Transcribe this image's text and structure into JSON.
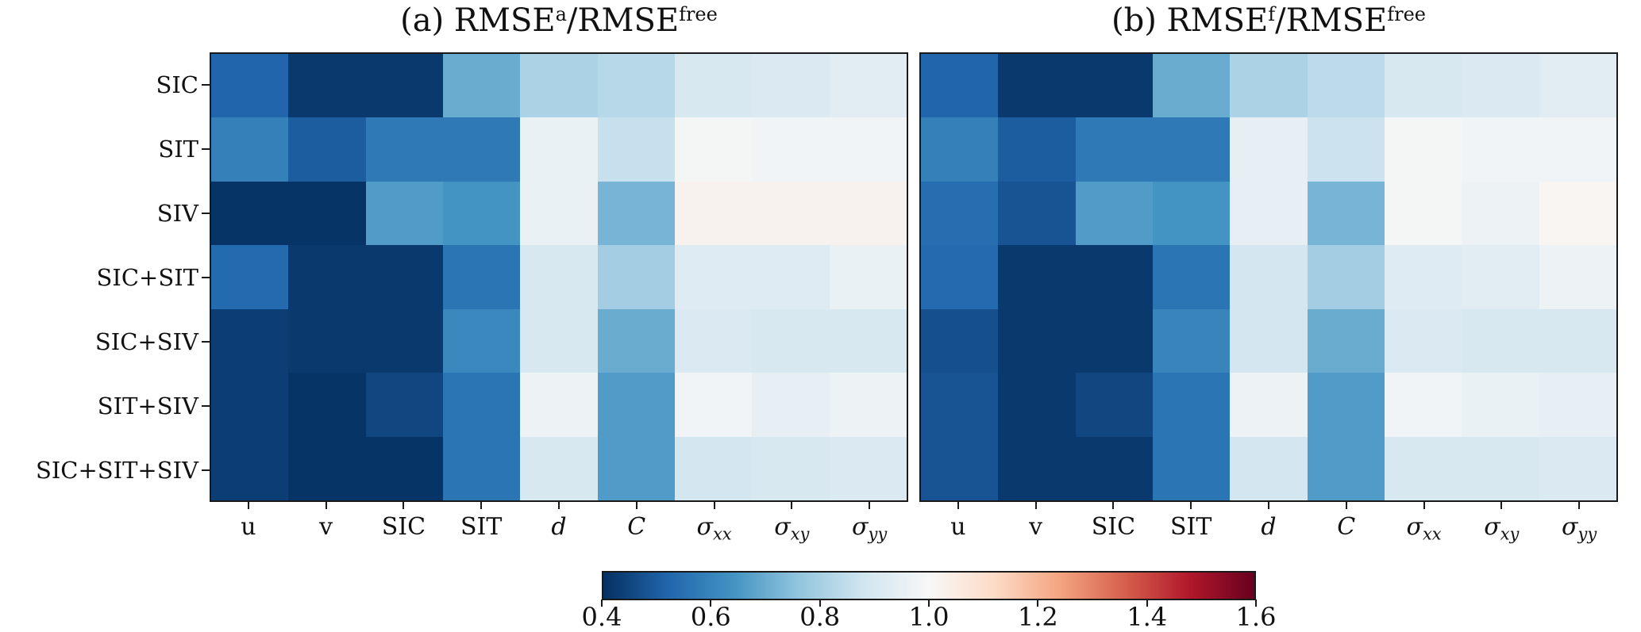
{
  "figure": {
    "background": "#ffffff",
    "spine_color": "#1a1a1a"
  },
  "chart_data": {
    "type": "heatmap",
    "colormap": "RdBu_r",
    "vmin": 0.4,
    "vmax": 1.6,
    "colormap_stops": [
      "#053061",
      "#2166ac",
      "#4393c3",
      "#92c5de",
      "#d1e5f0",
      "#f7f7f7",
      "#fddbc7",
      "#f4a582",
      "#d6604d",
      "#b2182b",
      "#67001f"
    ],
    "rows": [
      "SIC",
      "SIT",
      "SIV",
      "SIC+SIT",
      "SIC+SIV",
      "SIT+SIV",
      "SIC+SIT+SIV"
    ],
    "columns": [
      {
        "text": "u",
        "italic": false,
        "sub": ""
      },
      {
        "text": "v",
        "italic": false,
        "sub": ""
      },
      {
        "text": "SIC",
        "italic": false,
        "sub": ""
      },
      {
        "text": "SIT",
        "italic": false,
        "sub": ""
      },
      {
        "text": "d",
        "italic": true,
        "sub": ""
      },
      {
        "text": "C",
        "italic": true,
        "sub": ""
      },
      {
        "text": "σ",
        "italic": true,
        "sub": "xx"
      },
      {
        "text": "σ",
        "italic": true,
        "sub": "xy"
      },
      {
        "text": "σ",
        "italic": true,
        "sub": "yy"
      }
    ],
    "colorbar": {
      "orientation": "horizontal",
      "tick_values": [
        0.4,
        0.6,
        0.8,
        1.0,
        1.2,
        1.4,
        1.6
      ],
      "tick_labels": [
        "0.4",
        "0.6",
        "0.8",
        "1.0",
        "1.2",
        "1.4",
        "1.6"
      ]
    },
    "panels": [
      {
        "id": "a",
        "title": {
          "pre": "(a) RMSE",
          "sup1": "a",
          "mid": "/RMSE",
          "sup2": "free"
        },
        "values": [
          [
            0.52,
            0.42,
            0.42,
            0.7,
            0.81,
            0.83,
            0.9,
            0.91,
            0.93
          ],
          [
            0.59,
            0.5,
            0.57,
            0.57,
            0.96,
            0.86,
            0.99,
            0.98,
            0.98
          ],
          [
            0.41,
            0.41,
            0.66,
            0.64,
            0.96,
            0.72,
            1.02,
            1.02,
            1.02
          ],
          [
            0.53,
            0.42,
            0.42,
            0.56,
            0.9,
            0.79,
            0.92,
            0.92,
            0.96
          ],
          [
            0.43,
            0.42,
            0.42,
            0.61,
            0.9,
            0.7,
            0.91,
            0.9,
            0.9
          ],
          [
            0.43,
            0.41,
            0.45,
            0.56,
            0.97,
            0.66,
            0.98,
            0.95,
            0.97
          ],
          [
            0.43,
            0.41,
            0.41,
            0.56,
            0.9,
            0.66,
            0.89,
            0.9,
            0.91
          ]
        ]
      },
      {
        "id": "b",
        "title": {
          "pre": "(b) RMSE",
          "sup1": "f",
          "mid": "/RMSE",
          "sup2": "free"
        },
        "values": [
          [
            0.52,
            0.42,
            0.42,
            0.7,
            0.81,
            0.84,
            0.9,
            0.91,
            0.93
          ],
          [
            0.59,
            0.5,
            0.57,
            0.57,
            0.95,
            0.87,
            0.99,
            0.98,
            0.98
          ],
          [
            0.54,
            0.48,
            0.66,
            0.64,
            0.95,
            0.72,
            0.99,
            0.97,
            1.01
          ],
          [
            0.53,
            0.42,
            0.42,
            0.56,
            0.89,
            0.79,
            0.92,
            0.93,
            0.97
          ],
          [
            0.47,
            0.42,
            0.42,
            0.6,
            0.89,
            0.7,
            0.91,
            0.9,
            0.9
          ],
          [
            0.48,
            0.42,
            0.45,
            0.56,
            0.97,
            0.66,
            0.98,
            0.96,
            0.95
          ],
          [
            0.48,
            0.42,
            0.42,
            0.56,
            0.89,
            0.66,
            0.9,
            0.9,
            0.91
          ]
        ]
      }
    ]
  }
}
